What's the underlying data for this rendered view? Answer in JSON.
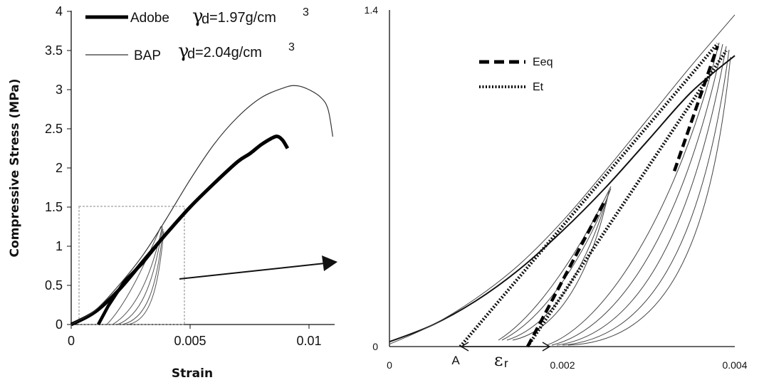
{
  "chart_data": [
    {
      "type": "line",
      "xlabel": "Strain",
      "ylabel": "Compressive Stress (MPa)",
      "xlim": [
        0,
        0.011
      ],
      "ylim": [
        0,
        4
      ],
      "x_ticks": [
        "0",
        "0.005",
        "0.01"
      ],
      "y_ticks": [
        "0",
        "0.5",
        "1",
        "1.5",
        "2",
        "2.5",
        "3",
        "3.5",
        "4"
      ],
      "legend": [
        {
          "label": "Adobe",
          "gamma_sub": "d",
          "gamma_value": "=1.97g/cm",
          "sup": "3"
        },
        {
          "label": "BAP",
          "gamma_sub": "d",
          "gamma_value": "=2.04g/cm",
          "sup": "3"
        }
      ],
      "legend_position": "top-left",
      "series": [
        {
          "name": "Adobe",
          "style": "thick",
          "x": [
            0,
            0.001,
            0.002,
            0.003,
            0.004,
            0.005,
            0.006,
            0.007,
            0.0075,
            0.008,
            0.0085,
            0.0087,
            0.0089,
            0.0091
          ],
          "y": [
            0,
            0.16,
            0.44,
            0.8,
            1.16,
            1.5,
            1.8,
            2.08,
            2.18,
            2.3,
            2.39,
            2.4,
            2.35,
            2.25
          ]
        },
        {
          "name": "BAP",
          "style": "thin",
          "x": [
            0,
            0.001,
            0.002,
            0.003,
            0.004,
            0.005,
            0.006,
            0.007,
            0.008,
            0.009,
            0.0095,
            0.01,
            0.0105,
            0.0108,
            0.011
          ],
          "y": [
            0,
            0.18,
            0.5,
            0.88,
            1.35,
            1.85,
            2.3,
            2.65,
            2.9,
            3.03,
            3.05,
            3.0,
            2.9,
            2.75,
            2.4
          ]
        }
      ],
      "inset_box": {
        "x": [
          0.0004,
          0.0047
        ],
        "y": [
          0,
          1.52
        ]
      }
    },
    {
      "type": "line",
      "xlim": [
        0,
        0.004
      ],
      "ylim": [
        0,
        1.4
      ],
      "x_ticks": [
        "0",
        "0.002",
        "0.004"
      ],
      "y_ticks": [
        "0",
        "1.4"
      ],
      "legend": [
        {
          "label": "Eeq",
          "style": "dashed"
        },
        {
          "label": "Et",
          "style": "dotted"
        }
      ],
      "legend_position": "top-left",
      "annotations": {
        "point_A": "A",
        "epsilon_symbol": "ε",
        "epsilon_sub": "r"
      },
      "series": [
        {
          "name": "Adobe",
          "x": [
            0,
            0.0005,
            0.001,
            0.0015,
            0.002,
            0.0025,
            0.003,
            0.0035,
            0.004
          ],
          "y": [
            0.02,
            0.09,
            0.19,
            0.32,
            0.48,
            0.66,
            0.86,
            1.06,
            1.21
          ]
        },
        {
          "name": "BAP",
          "x": [
            0,
            0.0005,
            0.001,
            0.0015,
            0.002,
            0.0025,
            0.003,
            0.0035,
            0.004
          ],
          "y": [
            0.01,
            0.09,
            0.2,
            0.34,
            0.52,
            0.73,
            0.95,
            1.17,
            1.38
          ]
        },
        {
          "name": "Et",
          "x": [
            0.00082,
            0.0038
          ],
          "y": [
            0,
            1.26
          ]
        },
        {
          "name": "Et",
          "x": [
            0.0016,
            0.0039
          ],
          "y": [
            0,
            1.23
          ]
        },
        {
          "name": "Eeq",
          "x": [
            0.0016,
            0.0025
          ],
          "y": [
            0,
            0.61
          ]
        },
        {
          "name": "Eeq",
          "x": [
            0.0033,
            0.0038
          ],
          "y": [
            0.73,
            1.25
          ]
        }
      ]
    }
  ]
}
